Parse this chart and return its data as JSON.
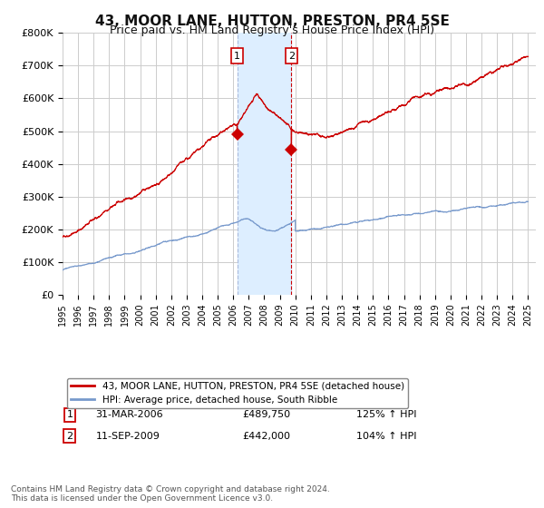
{
  "title": "43, MOOR LANE, HUTTON, PRESTON, PR4 5SE",
  "subtitle": "Price paid vs. HM Land Registry's House Price Index (HPI)",
  "title_fontsize": 11,
  "subtitle_fontsize": 9,
  "ylabel_ticks": [
    "£0",
    "£100K",
    "£200K",
    "£300K",
    "£400K",
    "£500K",
    "£600K",
    "£700K",
    "£800K"
  ],
  "ytick_values": [
    0,
    100000,
    200000,
    300000,
    400000,
    500000,
    600000,
    700000,
    800000
  ],
  "ylim": [
    0,
    800000
  ],
  "xlim_start": 1995.0,
  "xlim_end": 2025.5,
  "legend_label_red": "43, MOOR LANE, HUTTON, PRESTON, PR4 5SE (detached house)",
  "legend_label_blue": "HPI: Average price, detached house, South Ribble",
  "sale1_label": "1",
  "sale1_date": "31-MAR-2006",
  "sale1_price": "£489,750",
  "sale1_hpi": "125% ↑ HPI",
  "sale1_x": 2006.25,
  "sale1_y": 489750,
  "sale2_label": "2",
  "sale2_date": "11-SEP-2009",
  "sale2_price": "£442,000",
  "sale2_hpi": "104% ↑ HPI",
  "sale2_x": 2009.75,
  "sale2_y": 442000,
  "shade_x1": 2006.25,
  "shade_x2": 2009.75,
  "footnote": "Contains HM Land Registry data © Crown copyright and database right 2024.\nThis data is licensed under the Open Government Licence v3.0.",
  "red_color": "#cc0000",
  "blue_color": "#7799cc",
  "shade_color": "#ddeeff",
  "grid_color": "#cccccc",
  "background_color": "#ffffff"
}
